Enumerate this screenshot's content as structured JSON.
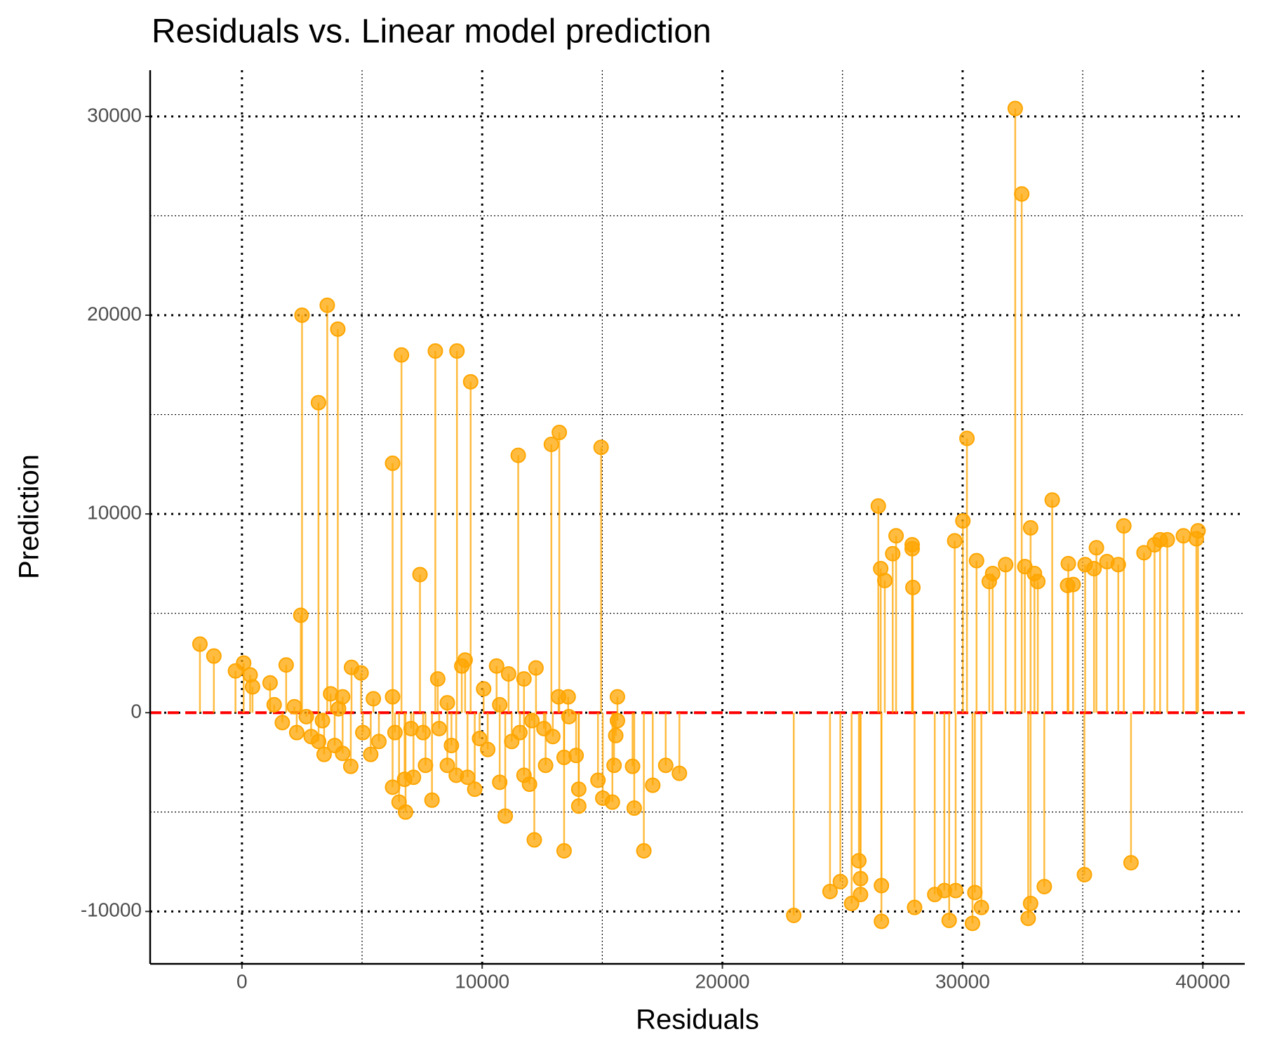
{
  "chart_data": {
    "type": "lollipop",
    "title": "Residuals vs. Linear model prediction",
    "x_label": "Residuals",
    "y_label": "Prediction",
    "color": "#FFA500",
    "xlim": [
      -3822,
      41745
    ],
    "ylim": [
      -12637,
      32327
    ],
    "xticks": [
      0,
      10000,
      20000,
      30000,
      40000
    ],
    "yticks": [
      -10000,
      0,
      10000,
      20000,
      30000
    ],
    "x_minor_grid": [
      5000,
      15000,
      25000,
      35000
    ],
    "y_minor_grid": [
      -5000,
      5000,
      15000,
      25000
    ],
    "grid": true,
    "reference_line": {
      "value": 0,
      "color": "#ff0000"
    },
    "x": [
      -1750,
      -1170,
      -270,
      70,
      340,
      440,
      2500,
      2450,
      3185,
      3550,
      3990,
      6270,
      6640,
      8050,
      8950,
      9520,
      11500,
      12880,
      13210,
      14950,
      7410,
      1840,
      4560,
      4960,
      9290,
      9150,
      10600,
      11100,
      12240,
      8150,
      11740,
      10060,
      15630,
      13180,
      13580,
      6270,
      5470,
      3690,
      1170,
      4190,
      6270,
      6540,
      6810,
      7910,
      10960,
      12170,
      13410,
      16730,
      16330,
      17100,
      17640,
      18210,
      14820,
      14020,
      14020,
      15020,
      15420,
      15560,
      15630,
      15490,
      16260,
      13910,
      12640,
      11970,
      11740,
      10730,
      9690,
      9390,
      8920,
      8550,
      7640,
      7140,
      6770,
      4530,
      4190,
      3420,
      5360,
      5030,
      2880,
      2280,
      1680,
      3190,
      3860,
      5700,
      6370,
      7040,
      7540,
      8210,
      8720,
      9890,
      10230,
      11230,
      11570,
      12070,
      12570,
      12940,
      13410,
      13610,
      1340,
      2180,
      2680,
      3350,
      4020,
      8550,
      10730,
      22970,
      24480,
      24910,
      25380,
      25680,
      25750,
      25750,
      26620,
      26620,
      26490,
      26590,
      26760,
      27090,
      27230,
      27900,
      27900,
      27930,
      28000,
      28840,
      29240,
      29440,
      29710,
      29670,
      30010,
      30180,
      30410,
      30510,
      30780,
      30580,
      31110,
      31250,
      31790,
      32190,
      32460,
      32590,
      32730,
      32830,
      32830,
      32990,
      33130,
      33400,
      33730,
      34370,
      34400,
      34600,
      35070,
      35100,
      35470,
      35570,
      36010,
      36480,
      36710,
      37010,
      37550,
      37990,
      38220,
      38520,
      39190,
      39730,
      39800
    ],
    "values": [
      3450,
      2850,
      2100,
      2500,
      1900,
      1300,
      20000,
      4900,
      15600,
      20500,
      19300,
      12550,
      18000,
      18200,
      18200,
      16650,
      12950,
      13500,
      14100,
      13350,
      6950,
      2400,
      2280,
      2000,
      2650,
      2350,
      2350,
      1950,
      2250,
      1700,
      1700,
      1200,
      800,
      800,
      800,
      800,
      700,
      950,
      1500,
      800,
      -3750,
      -4500,
      -5000,
      -4400,
      -5200,
      -6400,
      -6950,
      -6950,
      -4800,
      -3650,
      -2650,
      -3050,
      -3400,
      -3850,
      -4700,
      -4300,
      -4500,
      -1150,
      -400,
      -2650,
      -2700,
      -2150,
      -2650,
      -3600,
      -3150,
      -3500,
      -3850,
      -3250,
      -3150,
      -2650,
      -2650,
      -3250,
      -3350,
      -2700,
      -2050,
      -2100,
      -2100,
      -1000,
      -1200,
      -1000,
      -500,
      -1450,
      -1650,
      -1450,
      -1000,
      -800,
      -1000,
      -800,
      -1650,
      -1300,
      -1850,
      -1450,
      -1000,
      -400,
      -800,
      -1200,
      -2250,
      -200,
      400,
      300,
      -200,
      -400,
      200,
      500,
      400,
      -10200,
      -9000,
      -8500,
      -9600,
      -7450,
      -8350,
      -9150,
      -10500,
      -8700,
      10400,
      7250,
      6650,
      8000,
      8900,
      8450,
      8250,
      6300,
      -9800,
      -9150,
      -8950,
      -10450,
      -8950,
      8650,
      9650,
      13800,
      -10600,
      -9050,
      -9800,
      7650,
      6600,
      7000,
      7450,
      30400,
      26100,
      7350,
      -10350,
      -9600,
      9300,
      7000,
      6600,
      -8750,
      10700,
      6400,
      7500,
      6450,
      -8150,
      7450,
      7250,
      8300,
      7600,
      7450,
      9400,
      -7550,
      8050,
      8450,
      8700,
      8700,
      8900,
      8750,
      9150
    ]
  }
}
